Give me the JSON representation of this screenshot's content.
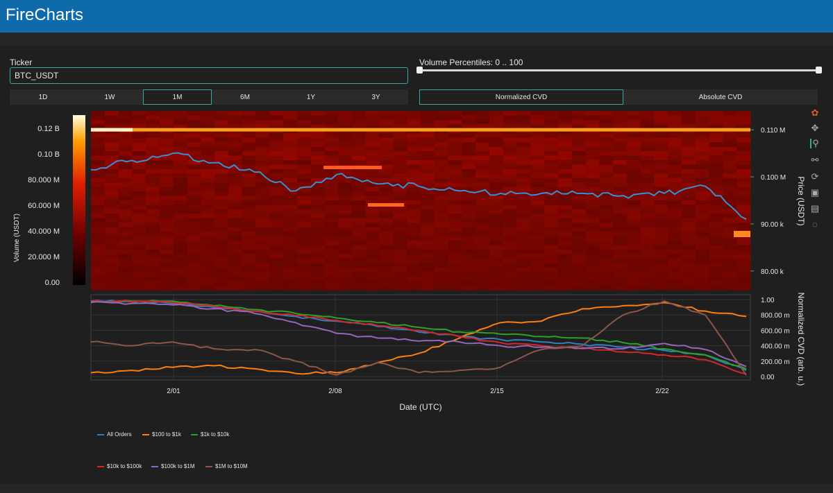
{
  "app": {
    "title": "FireCharts"
  },
  "ticker": {
    "label": "Ticker",
    "value": "BTC_USDT"
  },
  "timeframes": [
    {
      "label": "1D",
      "active": false
    },
    {
      "label": "1W",
      "active": false
    },
    {
      "label": "1M",
      "active": true
    },
    {
      "label": "6M",
      "active": false
    },
    {
      "label": "1Y",
      "active": false
    },
    {
      "label": "3Y",
      "active": false
    }
  ],
  "volume_percentiles": {
    "label": "Volume Percentiles: 0 .. 100",
    "min": 0,
    "max": 100
  },
  "cvd_modes": [
    {
      "label": "Normalized CVD",
      "active": true
    },
    {
      "label": "Absolute CVD",
      "active": false
    }
  ],
  "modebar": [
    "logo-icon",
    "pan-icon",
    "zoom-icon",
    "compare-icon",
    "reset-icon",
    "save-icon",
    "hover-icon",
    "spike-icon"
  ],
  "colors": {
    "accent": "#3fa6a6",
    "header": "#0e6aa8",
    "price_line": "#3a8fd4"
  },
  "chart_data": [
    {
      "type": "heatmap",
      "title": "",
      "colorbar": {
        "label": "Volume (USDT)",
        "ticks": [
          "0.00",
          "20.000 M",
          "40.000 M",
          "60.000 M",
          "80.000 M",
          "0.10 B",
          "0.12 B"
        ],
        "range": [
          0,
          130000000
        ]
      },
      "y_right": {
        "label": "Price (USDT)",
        "ticks": [
          "80.00 k",
          "90.00 k",
          "0.100 M",
          "0.110 M"
        ],
        "range": [
          76000,
          114000
        ]
      },
      "series": [
        {
          "name": "Price",
          "x": [
            0,
            2,
            4,
            6,
            8,
            10,
            12,
            14,
            16,
            18,
            20,
            22,
            24,
            26,
            28,
            30,
            32
          ],
          "values": [
            101500,
            103500,
            105000,
            103000,
            101000,
            97000,
            100500,
            98500,
            98000,
            97000,
            96500,
            96500,
            96500,
            96000,
            96500,
            98000,
            91000
          ]
        }
      ]
    },
    {
      "type": "line",
      "title": "",
      "xlabel": "Date (UTC)",
      "ylabel": "Normalized CVD (arb. u.)",
      "x_ticks": [
        "2/01",
        "2/08",
        "2/15",
        "2/22"
      ],
      "y_ticks": [
        "0.00",
        "200.00 m",
        "400.00 m",
        "600.00 m",
        "800.00 m",
        "1.00"
      ],
      "ylim": [
        0,
        1
      ],
      "series": [
        {
          "name": "All Orders",
          "color": "#2f7fc1",
          "values": [
            0.98,
            0.97,
            0.95,
            0.9,
            0.85,
            0.78,
            0.72,
            0.65,
            0.58,
            0.52,
            0.48,
            0.45,
            0.42,
            0.38,
            0.34,
            0.28,
            0.08
          ]
        },
        {
          "name": "$100 to $1k",
          "color": "#ff7f0e",
          "values": [
            0.05,
            0.08,
            0.12,
            0.14,
            0.1,
            0.04,
            0.05,
            0.18,
            0.3,
            0.5,
            0.7,
            0.72,
            0.88,
            0.92,
            0.96,
            0.85,
            0.78
          ]
        },
        {
          "name": "$1k to $10k",
          "color": "#2ca02c",
          "values": [
            0.96,
            0.98,
            0.98,
            0.92,
            0.87,
            0.82,
            0.76,
            0.7,
            0.64,
            0.58,
            0.55,
            0.52,
            0.5,
            0.44,
            0.36,
            0.28,
            0.1
          ]
        },
        {
          "name": "$10k to $100k",
          "color": "#d62728",
          "values": [
            0.98,
            0.97,
            0.96,
            0.91,
            0.85,
            0.79,
            0.73,
            0.66,
            0.6,
            0.52,
            0.44,
            0.4,
            0.36,
            0.32,
            0.28,
            0.22,
            0.03
          ]
        },
        {
          "name": "$100k to $1M",
          "color": "#9467bd",
          "values": [
            0.97,
            0.95,
            0.93,
            0.88,
            0.82,
            0.7,
            0.56,
            0.5,
            0.46,
            0.45,
            0.4,
            0.38,
            0.37,
            0.36,
            0.43,
            0.35,
            0.13
          ]
        },
        {
          "name": "$1M to $10M",
          "color": "#8c564b",
          "values": [
            0.45,
            0.4,
            0.45,
            0.36,
            0.35,
            0.2,
            0.02,
            0.18,
            0.05,
            0.08,
            0.12,
            0.35,
            0.4,
            0.8,
            0.98,
            0.8,
            0.02
          ]
        }
      ]
    }
  ]
}
